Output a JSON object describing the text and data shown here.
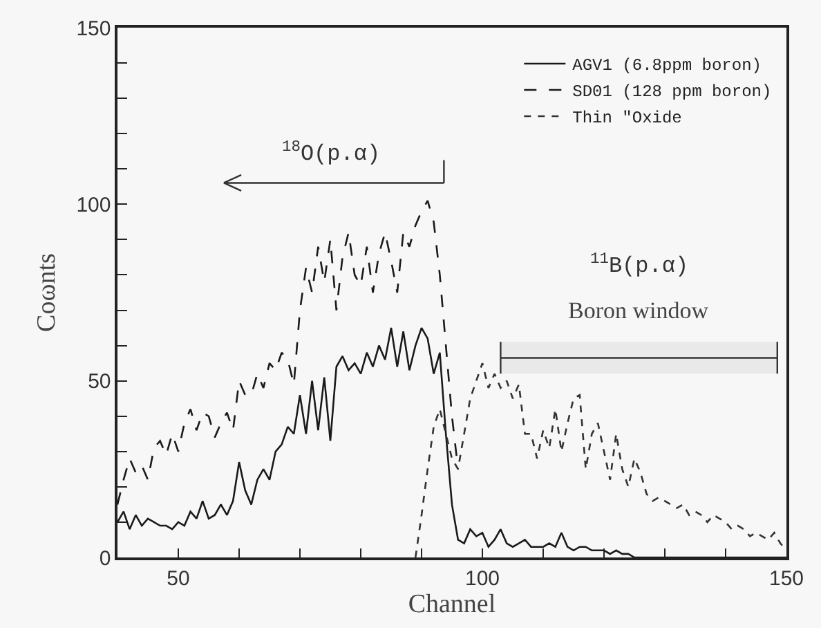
{
  "chart_data": {
    "type": "line",
    "xlabel": "Channel",
    "ylabel": "Coωnts",
    "xlim": [
      40,
      150
    ],
    "ylim": [
      0,
      150
    ],
    "xticks": [
      50,
      {
        "value": 60,
        "label": null
      },
      {
        "value": 70,
        "label": null
      },
      {
        "value": 80,
        "label": null
      },
      {
        "value": 90,
        "label": null
      },
      100,
      {
        "value": 110,
        "label": null
      },
      {
        "value": 120,
        "label": null
      },
      {
        "value": 130,
        "label": null
      },
      {
        "value": 140,
        "label": null
      },
      150
    ],
    "yticks": [
      0,
      {
        "value": 10,
        "label": null
      },
      {
        "value": 20,
        "label": null
      },
      {
        "value": 30,
        "label": null
      },
      {
        "value": 40,
        "label": null
      },
      50,
      {
        "value": 60,
        "label": null
      },
      {
        "value": 70,
        "label": null
      },
      {
        "value": 80,
        "label": null
      },
      {
        "value": 90,
        "label": null
      },
      100,
      {
        "value": 110,
        "label": null
      },
      {
        "value": 120,
        "label": null
      },
      {
        "value": 130,
        "label": null
      },
      {
        "value": 140,
        "label": null
      },
      150
    ],
    "grid": false,
    "legend": "top right",
    "marker": "none",
    "series": [
      {
        "name": "AGV1 (6.8ppm boron)",
        "color": "#1a1a1a",
        "line_style": "solid",
        "x": [
          40,
          41,
          42,
          43,
          44,
          45,
          46,
          47,
          48,
          49,
          50,
          51,
          52,
          53,
          54,
          55,
          56,
          57,
          58,
          59,
          60,
          61,
          62,
          63,
          64,
          65,
          66,
          67,
          68,
          69,
          70,
          71,
          72,
          73,
          74,
          75,
          76,
          77,
          78,
          79,
          80,
          81,
          82,
          83,
          84,
          85,
          86,
          87,
          88,
          89,
          90,
          91,
          92,
          93,
          94,
          95,
          96,
          97,
          98,
          99,
          100,
          101,
          102,
          103,
          104,
          105,
          106,
          107,
          108,
          109,
          110,
          111,
          112,
          113,
          114,
          115,
          116,
          117,
          118,
          119,
          120,
          121,
          122,
          123,
          124,
          125,
          130,
          135,
          140,
          145,
          150
        ],
        "values": [
          10,
          13,
          8,
          12,
          9,
          11,
          10,
          9,
          9,
          8,
          10,
          9,
          13,
          11,
          16,
          11,
          12,
          15,
          12,
          16,
          27,
          19,
          15,
          22,
          25,
          22,
          30,
          32,
          37,
          35,
          46,
          35,
          50,
          36,
          51,
          33,
          54,
          57,
          53,
          55,
          52,
          58,
          54,
          60,
          56,
          65,
          54,
          64,
          53,
          60,
          65,
          62,
          52,
          58,
          35,
          15,
          5,
          4,
          8,
          6,
          7,
          3,
          5,
          8,
          4,
          3,
          4,
          5,
          3,
          3,
          3,
          4,
          3,
          7,
          3,
          2,
          3,
          3,
          2,
          2,
          2,
          1,
          2,
          1,
          1,
          0,
          0,
          0,
          0,
          0,
          0
        ]
      },
      {
        "name": "SD01 (128 ppm boron)",
        "color": "#1a1a1a",
        "line_style": "dashed",
        "x": [
          40,
          41,
          42,
          43,
          44,
          45,
          46,
          47,
          48,
          49,
          50,
          51,
          52,
          53,
          54,
          55,
          56,
          57,
          58,
          59,
          60,
          61,
          62,
          63,
          64,
          65,
          66,
          67,
          68,
          69,
          70,
          71,
          72,
          73,
          74,
          75,
          76,
          77,
          78,
          79,
          80,
          81,
          82,
          83,
          84,
          85,
          86,
          87,
          88,
          89,
          90,
          91,
          92,
          93,
          94,
          95,
          96
        ],
        "values": [
          15,
          22,
          28,
          24,
          26,
          22,
          31,
          33,
          29,
          35,
          30,
          38,
          42,
          36,
          41,
          40,
          34,
          38,
          41,
          36,
          50,
          46,
          46,
          52,
          48,
          55,
          53,
          58,
          56,
          49,
          70,
          82,
          75,
          88,
          78,
          90,
          70,
          85,
          92,
          80,
          77,
          88,
          75,
          86,
          92,
          84,
          75,
          92,
          88,
          94,
          98,
          101,
          95,
          80,
          60,
          40,
          25
        ]
      },
      {
        "name": "Thin \"Oxide",
        "color": "#333333",
        "line_style": "dotted",
        "x": [
          89,
          90,
          91,
          92,
          93,
          94,
          95,
          96,
          97,
          98,
          99,
          100,
          101,
          102,
          103,
          104,
          105,
          106,
          107,
          108,
          109,
          110,
          111,
          112,
          113,
          114,
          115,
          116,
          117,
          118,
          119,
          120,
          121,
          122,
          123,
          124,
          125,
          126,
          127,
          128,
          129,
          130,
          131,
          132,
          133,
          134,
          135,
          136,
          137,
          138,
          139,
          140,
          141,
          142,
          143,
          144,
          145,
          146,
          147,
          148,
          149,
          150
        ],
        "values": [
          0,
          12,
          25,
          37,
          42,
          35,
          28,
          25,
          35,
          45,
          50,
          55,
          48,
          52,
          48,
          50,
          45,
          49,
          35,
          35,
          28,
          36,
          31,
          42,
          30,
          38,
          45,
          46,
          25,
          35,
          38,
          30,
          22,
          35,
          25,
          20,
          28,
          24,
          18,
          16,
          17,
          16,
          15,
          14,
          15,
          12,
          13,
          12,
          10,
          12,
          11,
          10,
          8,
          9,
          8,
          6,
          7,
          6,
          5,
          7,
          4,
          2
        ]
      },
      {
        "type": "line",
        "color": "#333333",
        "line_style": "solid",
        "x": [
          103,
          148.5
        ],
        "values": [
          56.5,
          56.5
        ]
      }
    ],
    "bands": [
      {
        "axis": "x",
        "from": 103,
        "to": 148.5,
        "label": "Boron window",
        "color": "#333333"
      }
    ],
    "annotations": [
      "$^{18}$O(p.α)",
      "$^{11}$B(p.α)"
    ]
  }
}
